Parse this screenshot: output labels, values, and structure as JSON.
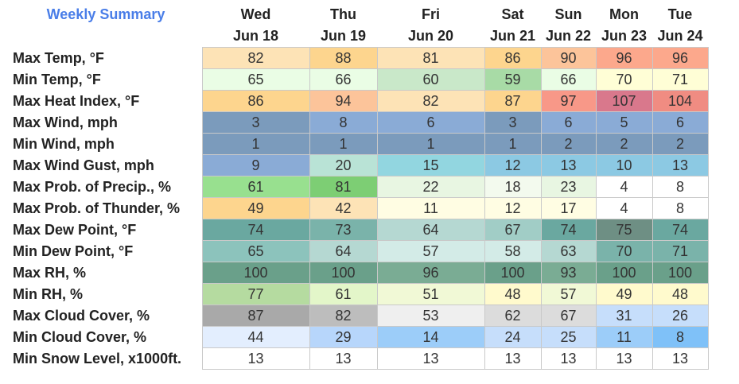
{
  "title": "Weekly Summary",
  "days": [
    {
      "day": "Wed",
      "date": "Jun 18"
    },
    {
      "day": "Thu",
      "date": "Jun 19"
    },
    {
      "day": "Fri",
      "date": "Jun 20"
    },
    {
      "day": "Sat",
      "date": "Jun 21"
    },
    {
      "day": "Sun",
      "date": "Jun 22"
    },
    {
      "day": "Mon",
      "date": "Jun 23"
    },
    {
      "day": "Tue",
      "date": "Jun 24"
    }
  ],
  "rows": [
    {
      "label": "Max Temp, °F",
      "values": [
        "82",
        "88",
        "81",
        "86",
        "90",
        "96",
        "96"
      ],
      "colors": [
        "#fde3b6",
        "#fdd58e",
        "#fde3b6",
        "#fdd58e",
        "#fcc49a",
        "#fca88c",
        "#fca88c"
      ]
    },
    {
      "label": "Min Temp, °F",
      "values": [
        "65",
        "66",
        "60",
        "59",
        "66",
        "70",
        "71"
      ],
      "colors": [
        "#eafde5",
        "#eafde5",
        "#c9e8c9",
        "#a8dba6",
        "#eafde5",
        "#fffed6",
        "#fffed6"
      ]
    },
    {
      "label": "Max Heat Index, °F",
      "values": [
        "86",
        "94",
        "82",
        "87",
        "97",
        "107",
        "104"
      ],
      "colors": [
        "#fdd58e",
        "#fcc49a",
        "#fde3b6",
        "#fdd58e",
        "#f89888",
        "#d9788c",
        "#f08c82"
      ]
    },
    {
      "label": "Max Wind, mph",
      "values": [
        "3",
        "8",
        "6",
        "3",
        "6",
        "5",
        "6"
      ],
      "colors": [
        "#7b9bbc",
        "#8aabd6",
        "#8aabd6",
        "#7b9bbc",
        "#8aabd6",
        "#8aabd6",
        "#8aabd6"
      ]
    },
    {
      "label": "Min Wind, mph",
      "values": [
        "1",
        "1",
        "1",
        "1",
        "2",
        "2",
        "2"
      ],
      "colors": [
        "#7b9bbc",
        "#7b9bbc",
        "#7b9bbc",
        "#7b9bbc",
        "#7b9bbc",
        "#7b9bbc",
        "#7b9bbc"
      ]
    },
    {
      "label": "Max Wind Gust, mph",
      "values": [
        "9",
        "20",
        "15",
        "12",
        "13",
        "10",
        "13"
      ],
      "colors": [
        "#8aabd6",
        "#b9e3d6",
        "#92d6e0",
        "#8cc9e3",
        "#8cc9e3",
        "#8cc9e3",
        "#8cc9e3"
      ]
    },
    {
      "label": "Max Prob. of Precip., %",
      "values": [
        "61",
        "81",
        "22",
        "18",
        "23",
        "4",
        "8"
      ],
      "colors": [
        "#98e08f",
        "#7dce74",
        "#e8f6e2",
        "#f3faee",
        "#e8f6e2",
        "#ffffff",
        "#ffffff"
      ]
    },
    {
      "label": "Max Prob. of Thunder, %",
      "values": [
        "49",
        "42",
        "11",
        "12",
        "17",
        "4",
        "8"
      ],
      "colors": [
        "#fdd58e",
        "#fde3b6",
        "#fffde3",
        "#fffde3",
        "#fffde3",
        "#ffffff",
        "#ffffff"
      ]
    },
    {
      "label": "Max Dew Point, °F",
      "values": [
        "74",
        "73",
        "64",
        "67",
        "74",
        "75",
        "74"
      ],
      "colors": [
        "#6aa8a0",
        "#7ab3aa",
        "#b5d8d2",
        "#a1cdc6",
        "#6aa8a0",
        "#6e8f84",
        "#6aa8a0"
      ]
    },
    {
      "label": "Min Dew Point, °F",
      "values": [
        "65",
        "64",
        "57",
        "58",
        "63",
        "70",
        "71"
      ],
      "colors": [
        "#8cc3bc",
        "#b5d8d2",
        "#d3ebe7",
        "#d3ebe7",
        "#b5d8d2",
        "#7ab3aa",
        "#7ab3aa"
      ]
    },
    {
      "label": "Max RH, %",
      "values": [
        "100",
        "100",
        "96",
        "100",
        "93",
        "100",
        "100"
      ],
      "colors": [
        "#6aa08a",
        "#6aa08a",
        "#7aac94",
        "#6aa08a",
        "#7aac94",
        "#6aa08a",
        "#6aa08a"
      ]
    },
    {
      "label": "Min RH, %",
      "values": [
        "77",
        "61",
        "51",
        "48",
        "57",
        "49",
        "48"
      ],
      "colors": [
        "#b5dba0",
        "#e3f6c9",
        "#f1f9d6",
        "#fffacd",
        "#f1f9d6",
        "#fffacd",
        "#fffacd"
      ]
    },
    {
      "label": "Max Cloud Cover, %",
      "values": [
        "87",
        "82",
        "53",
        "62",
        "67",
        "31",
        "26"
      ],
      "colors": [
        "#a9a9a9",
        "#bdbdbd",
        "#efefef",
        "#dcdcdc",
        "#dcdcdc",
        "#c6defb",
        "#c6defb"
      ]
    },
    {
      "label": "Min Cloud Cover, %",
      "values": [
        "44",
        "29",
        "14",
        "24",
        "25",
        "11",
        "8"
      ],
      "colors": [
        "#e3eefe",
        "#b7d6fb",
        "#9ccdf9",
        "#c6defb",
        "#c6defb",
        "#9ccdf9",
        "#7fc1f8"
      ]
    },
    {
      "label": "Min Snow Level, x1000ft.",
      "values": [
        "13",
        "13",
        "13",
        "13",
        "13",
        "13",
        "13"
      ],
      "colors": [
        "#ffffff",
        "#ffffff",
        "#ffffff",
        "#ffffff",
        "#ffffff",
        "#ffffff",
        "#ffffff"
      ]
    }
  ]
}
